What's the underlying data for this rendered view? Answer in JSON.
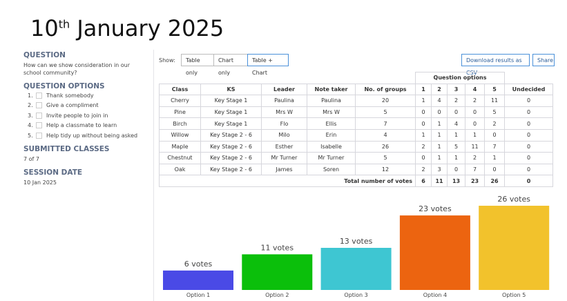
{
  "header": {
    "day": "10",
    "suffix": "th",
    "rest": "January 2025"
  },
  "sidebar": {
    "question_heading": "QUESTION",
    "question": "How can we show consideration in our school community?",
    "options_heading": "QUESTION OPTIONS",
    "options": [
      {
        "number": "1.",
        "text": "Thank somebody"
      },
      {
        "number": "2.",
        "text": "Give a compliment"
      },
      {
        "number": "3.",
        "text": "Invite people to join in"
      },
      {
        "number": "4.",
        "text": "Help a classmate to learn"
      },
      {
        "number": "5.",
        "text": "Help tidy up without being asked"
      }
    ],
    "classes_heading": "SUBMITTED CLASSES",
    "classes": "7 of 7",
    "date_heading": "SESSION DATE",
    "date": "10 Jan 2025"
  },
  "toolbar": {
    "show_label": "Show:",
    "views": [
      "Table only",
      "Chart only",
      "Table + Chart"
    ],
    "active_view": 2,
    "download": "Download results as CSV",
    "share": "Share"
  },
  "table": {
    "group_header": "Question options",
    "columns": [
      "Class",
      "KS",
      "Leader",
      "Note taker",
      "No. of groups",
      "1",
      "2",
      "3",
      "4",
      "5",
      "Undecided"
    ],
    "rows": [
      [
        "Cherry",
        "Key Stage 1",
        "Paulina",
        "Paulina",
        20,
        1,
        4,
        2,
        2,
        11,
        0
      ],
      [
        "Pine",
        "Key Stage 1",
        "Mrs W",
        "Mrs W",
        5,
        0,
        0,
        0,
        0,
        5,
        0
      ],
      [
        "Birch",
        "Key Stage 1",
        "Flo",
        "Ellis",
        7,
        0,
        1,
        4,
        0,
        2,
        0
      ],
      [
        "Willow",
        "Key Stage 2 - 6",
        "Milo",
        "Erin",
        4,
        1,
        1,
        1,
        1,
        0,
        0
      ],
      [
        "Maple",
        "Key Stage 2 - 6",
        "Esther",
        "Isabelle",
        26,
        2,
        1,
        5,
        11,
        7,
        0
      ],
      [
        "Chestnut",
        "Key Stage 2 - 6",
        "Mr Turner",
        "Mr Turner",
        5,
        0,
        1,
        1,
        2,
        1,
        0
      ],
      [
        "Oak",
        "Key Stage 2 - 6",
        "James",
        "Soren",
        12,
        2,
        3,
        0,
        7,
        0,
        0
      ]
    ],
    "total_label": "Total number of votes",
    "totals": [
      6,
      11,
      13,
      23,
      26,
      0
    ]
  },
  "chart_data": {
    "type": "bar",
    "categories": [
      "Option 1",
      "Option 2",
      "Option 3",
      "Option 4",
      "Option 5"
    ],
    "values": [
      6,
      11,
      13,
      23,
      26
    ],
    "value_labels": [
      "6 votes",
      "11 votes",
      "13 votes",
      "23 votes",
      "26 votes"
    ],
    "colors": [
      "#4a4ae6",
      "#0bbf0b",
      "#3ec6d2",
      "#ec6410",
      "#f2c22c"
    ]
  }
}
